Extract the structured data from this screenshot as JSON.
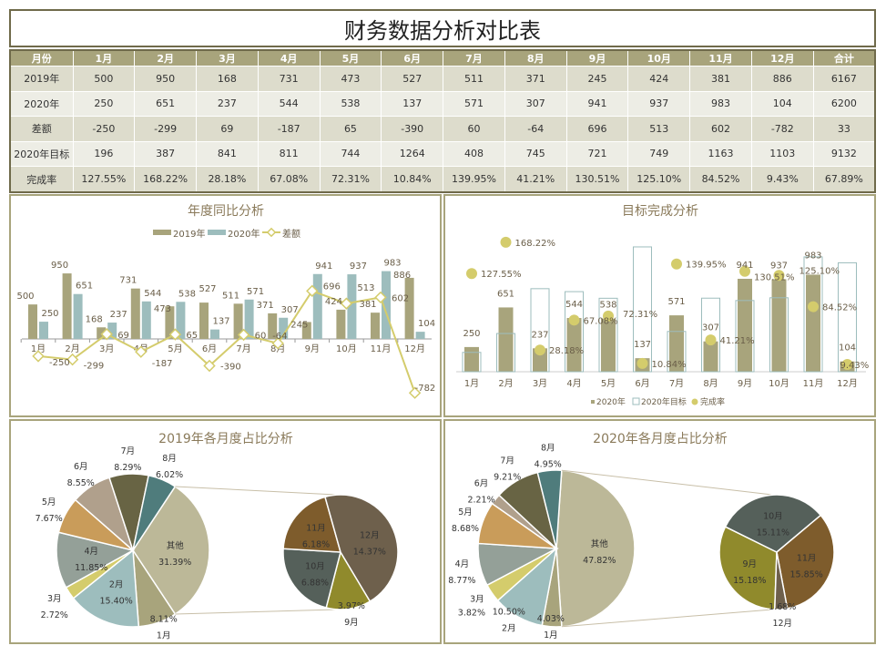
{
  "title": "财务数据分析对比表",
  "table": {
    "headers": [
      "月份",
      "1月",
      "2月",
      "3月",
      "4月",
      "5月",
      "6月",
      "7月",
      "8月",
      "9月",
      "10月",
      "11月",
      "12月",
      "合计"
    ],
    "rows": [
      [
        "2019年",
        "500",
        "950",
        "168",
        "731",
        "473",
        "527",
        "511",
        "371",
        "245",
        "424",
        "381",
        "886",
        "6167"
      ],
      [
        "2020年",
        "250",
        "651",
        "237",
        "544",
        "538",
        "137",
        "571",
        "307",
        "941",
        "937",
        "983",
        "104",
        "6200"
      ],
      [
        "差额",
        "-250",
        "-299",
        "69",
        "-187",
        "65",
        "-390",
        "60",
        "-64",
        "696",
        "513",
        "602",
        "-782",
        "33"
      ],
      [
        "2020年目标",
        "196",
        "387",
        "841",
        "811",
        "744",
        "1264",
        "408",
        "745",
        "721",
        "749",
        "1163",
        "1103",
        "9132"
      ],
      [
        "完成率",
        "127.55%",
        "168.22%",
        "28.18%",
        "67.08%",
        "72.31%",
        "10.84%",
        "139.95%",
        "41.21%",
        "130.51%",
        "125.10%",
        "84.52%",
        "9.43%",
        "67.89%"
      ]
    ]
  },
  "colors": {
    "c2019": "#a8a47c",
    "c2020": "#9dbdbd",
    "diff": "#d4cc6c",
    "target_border": "#9dbdbd",
    "title_text": "#8a7a5a"
  },
  "chart_data": [
    {
      "type": "bar",
      "title": "年度同比分析",
      "categories": [
        "1月",
        "2月",
        "3月",
        "4月",
        "5月",
        "6月",
        "7月",
        "8月",
        "9月",
        "10月",
        "11月",
        "12月"
      ],
      "legend": "top",
      "series": [
        {
          "name": "2019年",
          "type": "bar",
          "values": [
            500,
            950,
            168,
            731,
            473,
            527,
            511,
            371,
            245,
            424,
            381,
            886
          ]
        },
        {
          "name": "2020年",
          "type": "bar",
          "values": [
            250,
            651,
            237,
            544,
            538,
            137,
            571,
            307,
            941,
            937,
            983,
            104
          ]
        },
        {
          "name": "差额",
          "type": "line",
          "values": [
            -250,
            -299,
            69,
            -187,
            65,
            -390,
            60,
            -64,
            696,
            513,
            602,
            -782
          ]
        }
      ]
    },
    {
      "type": "bar",
      "title": "目标完成分析",
      "categories": [
        "1月",
        "2月",
        "3月",
        "4月",
        "5月",
        "6月",
        "7月",
        "8月",
        "9月",
        "10月",
        "11月",
        "12月"
      ],
      "legend": "bottom",
      "series": [
        {
          "name": "2020年",
          "type": "bar",
          "values": [
            250,
            651,
            237,
            544,
            538,
            137,
            571,
            307,
            941,
            937,
            983,
            104
          ]
        },
        {
          "name": "2020年目标",
          "type": "bar-outline",
          "values": [
            196,
            387,
            841,
            811,
            744,
            1264,
            408,
            745,
            721,
            749,
            1163,
            1103
          ]
        },
        {
          "name": "完成率",
          "type": "scatter",
          "values": [
            127.55,
            168.22,
            28.18,
            67.08,
            72.31,
            10.84,
            139.95,
            41.21,
            130.51,
            125.1,
            84.52,
            9.43
          ],
          "labels": [
            "127.55%",
            "168.22%",
            "28.18%",
            "67.08%",
            "72.31%",
            "10.84%",
            "139.95%",
            "41.21%",
            "130.51%",
            "125.10%",
            "84.52%",
            "9.43%"
          ]
        }
      ]
    },
    {
      "type": "pie",
      "title": "2019年各月度占比分析",
      "main": [
        {
          "label": "其他",
          "pct": "31.39%",
          "value": 31.39,
          "color": "#bcb898"
        },
        {
          "label": "1月",
          "pct": "8.11%",
          "value": 8.11,
          "color": "#a8a47c"
        },
        {
          "label": "2月",
          "pct": "15.40%",
          "value": 15.4,
          "color": "#9dbdbd"
        },
        {
          "label": "3月",
          "pct": "2.72%",
          "value": 2.72,
          "color": "#d4cc6c"
        },
        {
          "label": "4月",
          "pct": "11.85%",
          "value": 11.85,
          "color": "#94a098"
        },
        {
          "label": "5月",
          "pct": "7.67%",
          "value": 7.67,
          "color": "#c99c5a"
        },
        {
          "label": "6月",
          "pct": "8.55%",
          "value": 8.55,
          "color": "#b0a08c"
        },
        {
          "label": "7月",
          "pct": "8.29%",
          "value": 8.29,
          "color": "#686444"
        },
        {
          "label": "8月",
          "pct": "6.02%",
          "value": 6.02,
          "color": "#4f7c7c"
        }
      ],
      "secondary": [
        {
          "label": "9月",
          "pct": "3.97%",
          "value": 3.97,
          "color": "#908a2c"
        },
        {
          "label": "10月",
          "pct": "6.88%",
          "value": 6.88,
          "color": "#55605a"
        },
        {
          "label": "11月",
          "pct": "6.18%",
          "value": 6.18,
          "color": "#7e5c2c"
        },
        {
          "label": "12月",
          "pct": "14.37%",
          "value": 14.37,
          "color": "#6e604c"
        }
      ]
    },
    {
      "type": "pie",
      "title": "2020年各月度占比分析",
      "main": [
        {
          "label": "其他",
          "pct": "47.82%",
          "value": 47.82,
          "color": "#bcb898"
        },
        {
          "label": "1月",
          "pct": "4.03%",
          "value": 4.03,
          "color": "#a8a47c"
        },
        {
          "label": "2月",
          "pct": "10.50%",
          "value": 10.5,
          "color": "#9dbdbd"
        },
        {
          "label": "3月",
          "pct": "3.82%",
          "value": 3.82,
          "color": "#d4cc6c"
        },
        {
          "label": "4月",
          "pct": "8.77%",
          "value": 8.77,
          "color": "#94a098"
        },
        {
          "label": "5月",
          "pct": "8.68%",
          "value": 8.68,
          "color": "#c99c5a"
        },
        {
          "label": "6月",
          "pct": "2.21%",
          "value": 2.21,
          "color": "#b0a08c"
        },
        {
          "label": "7月",
          "pct": "9.21%",
          "value": 9.21,
          "color": "#686444"
        },
        {
          "label": "8月",
          "pct": "4.95%",
          "value": 4.95,
          "color": "#4f7c7c"
        }
      ],
      "secondary": [
        {
          "label": "9月",
          "pct": "15.18%",
          "value": 15.18,
          "color": "#908a2c"
        },
        {
          "label": "10月",
          "pct": "15.11%",
          "value": 15.11,
          "color": "#55605a"
        },
        {
          "label": "11月",
          "pct": "15.85%",
          "value": 15.85,
          "color": "#7e5c2c"
        },
        {
          "label": "12月",
          "pct": "1.68%",
          "value": 1.68,
          "color": "#6e604c"
        }
      ]
    }
  ]
}
